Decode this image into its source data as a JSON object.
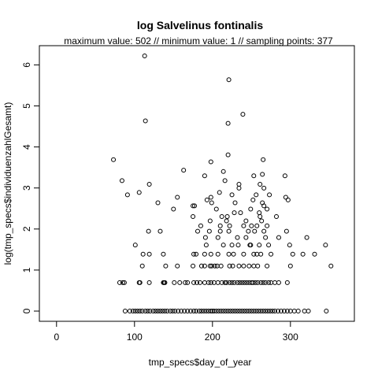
{
  "chart_data": {
    "type": "scatter",
    "title": "log Salvelinus fontinalis",
    "subtitle": "maximum value: 502  //  minimum value: 1  // sampling points: 377",
    "x_label": "tmp_specs$day_of_year",
    "y_label": "log(tmp_specs$individuenzahlGesamt)",
    "xlim": [
      -22,
      382
    ],
    "ylim": [
      -0.249,
      6.468
    ],
    "xticks": [
      0,
      100,
      200,
      300
    ],
    "yticks": [
      0,
      1,
      2,
      3,
      4,
      5,
      6
    ],
    "color": "#000000",
    "x": [
      88,
      94,
      98,
      101,
      104,
      107,
      110,
      114,
      117,
      120,
      124,
      127,
      130,
      133,
      136,
      139,
      142,
      146,
      149,
      152,
      156,
      160,
      164,
      168,
      172,
      176,
      179,
      183,
      186,
      189,
      192,
      195,
      198,
      200,
      202,
      205,
      208,
      211,
      214,
      217,
      220,
      223,
      226,
      229,
      232,
      235,
      238,
      241,
      244,
      247,
      250,
      253,
      256,
      259,
      262,
      265,
      268,
      271,
      274,
      277,
      280,
      284,
      288,
      292,
      296,
      300,
      305,
      310,
      318,
      323,
      346,
      81,
      85,
      87,
      106,
      107,
      119,
      137,
      138,
      139,
      151,
      158,
      165,
      168,
      176,
      180,
      184,
      190,
      195,
      198,
      202,
      207,
      212,
      216,
      218,
      222,
      225,
      228,
      232,
      235,
      238,
      241,
      244,
      247,
      250,
      252,
      255,
      258,
      262,
      265,
      268,
      272,
      275,
      280,
      285,
      296,
      110,
      140,
      155,
      175,
      186,
      190,
      197,
      199,
      203,
      206,
      211,
      222,
      226,
      234,
      240,
      247,
      253,
      258,
      270,
      300,
      352,
      111,
      119,
      137,
      176,
      179,
      190,
      198,
      207,
      221,
      227,
      240,
      253,
      257,
      262,
      275,
      303,
      316,
      331,
      101,
      192,
      214,
      225,
      233,
      248,
      249,
      260,
      272,
      299,
      345,
      191,
      207,
      232,
      243,
      268,
      285,
      321,
      118,
      133,
      181,
      196,
      210,
      221,
      246,
      254,
      266,
      295,
      185,
      210,
      222,
      240,
      250,
      257,
      270,
      197,
      218,
      243,
      263,
      175,
      212,
      219,
      261,
      282,
      228,
      236,
      260,
      150,
      205,
      249,
      270,
      175,
      177,
      266,
      130,
      199,
      229,
      264,
      193,
      252,
      297,
      155,
      198,
      294,
      91,
      225,
      256,
      273,
      106,
      209,
      234,
      266,
      119,
      234,
      261,
      84,
      216,
      190,
      253,
      293,
      264,
      214,
      163,
      198,
      73,
      265,
      220,
      113,
      221,
      114,
      239,
      220
    ],
    "values": [
      0,
      0,
      0,
      0,
      0,
      0,
      0,
      0,
      0,
      0,
      0,
      0,
      0,
      0,
      0,
      0,
      0,
      0,
      0,
      0,
      0,
      0,
      0,
      0,
      0,
      0,
      0,
      0,
      0,
      0,
      0,
      0,
      0,
      0,
      0,
      0,
      0,
      0,
      0,
      0,
      0,
      0,
      0,
      0,
      0,
      0,
      0,
      0,
      0,
      0,
      0,
      0,
      0,
      0,
      0,
      0,
      0,
      0,
      0,
      0,
      0,
      0,
      0,
      0,
      0,
      0,
      0,
      0,
      0,
      0,
      0,
      0.693,
      0.693,
      0.693,
      0.693,
      0.693,
      0.693,
      0.693,
      0.693,
      0.693,
      0.693,
      0.693,
      0.693,
      0.693,
      0.693,
      0.693,
      0.693,
      0.693,
      0.693,
      0.693,
      0.693,
      0.693,
      0.693,
      0.693,
      0.693,
      0.693,
      0.693,
      0.693,
      0.693,
      0.693,
      0.693,
      0.693,
      0.693,
      0.693,
      0.693,
      0.693,
      0.693,
      0.693,
      0.693,
      0.693,
      0.693,
      0.693,
      0.693,
      0.693,
      0.693,
      0.693,
      1.099,
      1.099,
      1.099,
      1.099,
      1.099,
      1.099,
      1.099,
      1.099,
      1.099,
      1.099,
      1.099,
      1.099,
      1.099,
      1.099,
      1.099,
      1.099,
      1.099,
      1.099,
      1.099,
      1.099,
      1.099,
      1.386,
      1.386,
      1.386,
      1.386,
      1.386,
      1.386,
      1.386,
      1.386,
      1.386,
      1.386,
      1.386,
      1.386,
      1.386,
      1.386,
      1.386,
      1.386,
      1.386,
      1.386,
      1.609,
      1.609,
      1.609,
      1.609,
      1.609,
      1.609,
      1.609,
      1.609,
      1.609,
      1.609,
      1.609,
      1.792,
      1.792,
      1.792,
      1.792,
      1.792,
      1.792,
      1.792,
      1.946,
      1.946,
      1.946,
      1.946,
      1.946,
      1.946,
      1.946,
      1.946,
      1.946,
      1.946,
      2.079,
      2.079,
      2.079,
      2.079,
      2.079,
      2.079,
      2.079,
      2.197,
      2.197,
      2.197,
      2.197,
      2.303,
      2.303,
      2.303,
      2.303,
      2.303,
      2.398,
      2.398,
      2.398,
      2.485,
      2.485,
      2.485,
      2.485,
      2.565,
      2.565,
      2.565,
      2.639,
      2.639,
      2.639,
      2.639,
      2.708,
      2.708,
      2.708,
      2.773,
      2.773,
      2.773,
      2.833,
      2.833,
      2.833,
      2.833,
      2.89,
      2.89,
      2.996,
      2.996,
      3.091,
      3.091,
      3.091,
      3.178,
      3.178,
      3.296,
      3.296,
      3.296,
      3.332,
      3.401,
      3.434,
      3.638,
      3.689,
      3.689,
      3.807,
      6.218,
      5.638,
      4.635,
      4.796,
      4.575
    ]
  }
}
